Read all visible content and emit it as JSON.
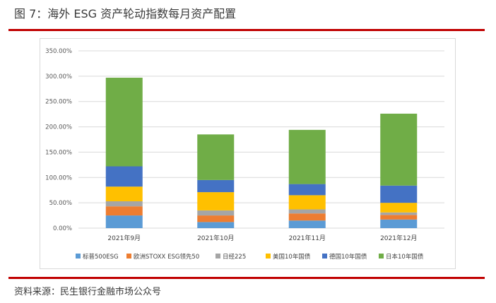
{
  "figure": {
    "title": "图 7：海外 ESG 资产轮动指数每月资产配置",
    "source": "资料来源：民生银行金融市场公众号"
  },
  "colors": {
    "标普500ESG": "#5B9BD5",
    "欧洲STOXX ESG领先50": "#ED7D31",
    "日经225": "#A5A5A5",
    "美国10年国债": "#FFC000",
    "德国10年国债": "#4472C4",
    "日本10年国债": "#70AD47",
    "rule": "#C00000"
  },
  "chart_data": {
    "type": "bar",
    "stacked": true,
    "title": "",
    "xlabel": "",
    "ylabel": "",
    "ylim": [
      0,
      350
    ],
    "yticks": [
      0,
      50,
      100,
      150,
      200,
      250,
      300,
      350
    ],
    "ytick_labels": [
      "0.00%",
      "50.00%",
      "100.00%",
      "150.00%",
      "200.00%",
      "250.00%",
      "300.00%",
      "350.00%"
    ],
    "grid": true,
    "legend_position": "bottom",
    "categories": [
      "2021年9月",
      "2021年10月",
      "2021年11月",
      "2021年12月"
    ],
    "series": [
      {
        "name": "标普500ESG",
        "values": [
          25,
          12,
          15,
          17
        ]
      },
      {
        "name": "欧洲STOXX ESG领先50",
        "values": [
          18,
          13,
          14,
          9
        ]
      },
      {
        "name": "日经225",
        "values": [
          10,
          10,
          8,
          5
        ]
      },
      {
        "name": "美国10年国债",
        "values": [
          29,
          36,
          28,
          19
        ]
      },
      {
        "name": "德国10年国债",
        "values": [
          40,
          24,
          22,
          34
        ]
      },
      {
        "name": "日本10年国债",
        "values": [
          175,
          90,
          107,
          142
        ]
      }
    ]
  }
}
